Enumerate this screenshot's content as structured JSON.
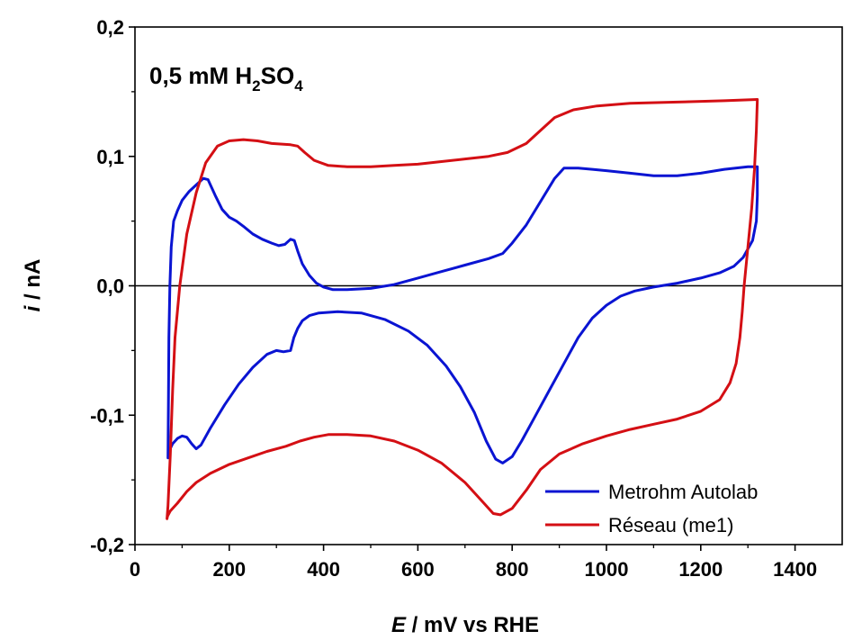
{
  "chart_data": {
    "type": "line",
    "annotation": {
      "main": "0,5 mM H",
      "sub1": "2",
      "mid": "SO",
      "sub2": "4"
    },
    "xlabel": {
      "italic": "E",
      "rest": " / mV vs RHE"
    },
    "ylabel": {
      "italic": "i",
      "rest": " / nA"
    },
    "xlim": [
      0,
      1500
    ],
    "ylim": [
      -0.2,
      0.2
    ],
    "xticks": [
      0,
      200,
      400,
      600,
      800,
      1000,
      1200,
      1400
    ],
    "xtick_labels": [
      "0",
      "200",
      "400",
      "600",
      "800",
      "1000",
      "1200",
      "1400"
    ],
    "yticks": [
      -0.2,
      -0.1,
      0.0,
      0.1,
      0.2
    ],
    "ytick_labels": [
      "-0,2",
      "-0,1",
      "0,0",
      "0,1",
      "0,2"
    ],
    "zero_line": true,
    "legend_position": "bottom-right",
    "series": [
      {
        "name": "Metrohm Autolab",
        "color": "#0a14d2",
        "points": [
          [
            70,
            -0.133
          ],
          [
            71,
            -0.09
          ],
          [
            72,
            -0.04
          ],
          [
            74,
            0.0
          ],
          [
            77,
            0.03
          ],
          [
            82,
            0.05
          ],
          [
            90,
            0.058
          ],
          [
            100,
            0.066
          ],
          [
            115,
            0.073
          ],
          [
            130,
            0.078
          ],
          [
            145,
            0.083
          ],
          [
            155,
            0.082
          ],
          [
            170,
            0.07
          ],
          [
            185,
            0.059
          ],
          [
            200,
            0.053
          ],
          [
            215,
            0.05
          ],
          [
            230,
            0.046
          ],
          [
            250,
            0.04
          ],
          [
            270,
            0.036
          ],
          [
            290,
            0.033
          ],
          [
            305,
            0.031
          ],
          [
            318,
            0.032
          ],
          [
            330,
            0.036
          ],
          [
            338,
            0.035
          ],
          [
            345,
            0.027
          ],
          [
            355,
            0.017
          ],
          [
            370,
            0.008
          ],
          [
            385,
            0.002
          ],
          [
            400,
            -0.001
          ],
          [
            420,
            -0.003
          ],
          [
            450,
            -0.003
          ],
          [
            500,
            -0.002
          ],
          [
            550,
            0.001
          ],
          [
            600,
            0.006
          ],
          [
            650,
            0.011
          ],
          [
            700,
            0.016
          ],
          [
            750,
            0.021
          ],
          [
            780,
            0.025
          ],
          [
            800,
            0.033
          ],
          [
            830,
            0.047
          ],
          [
            860,
            0.065
          ],
          [
            890,
            0.083
          ],
          [
            910,
            0.091
          ],
          [
            940,
            0.091
          ],
          [
            970,
            0.09
          ],
          [
            1000,
            0.089
          ],
          [
            1050,
            0.087
          ],
          [
            1100,
            0.085
          ],
          [
            1150,
            0.085
          ],
          [
            1200,
            0.087
          ],
          [
            1250,
            0.09
          ],
          [
            1300,
            0.092
          ],
          [
            1320,
            0.092
          ],
          [
            1320,
            0.07
          ],
          [
            1318,
            0.05
          ],
          [
            1310,
            0.035
          ],
          [
            1290,
            0.022
          ],
          [
            1270,
            0.015
          ],
          [
            1240,
            0.01
          ],
          [
            1200,
            0.006
          ],
          [
            1150,
            0.002
          ],
          [
            1100,
            -0.001
          ],
          [
            1060,
            -0.004
          ],
          [
            1030,
            -0.008
          ],
          [
            1000,
            -0.015
          ],
          [
            970,
            -0.025
          ],
          [
            940,
            -0.04
          ],
          [
            910,
            -0.06
          ],
          [
            880,
            -0.08
          ],
          [
            850,
            -0.1
          ],
          [
            820,
            -0.12
          ],
          [
            800,
            -0.132
          ],
          [
            780,
            -0.137
          ],
          [
            765,
            -0.134
          ],
          [
            745,
            -0.12
          ],
          [
            720,
            -0.098
          ],
          [
            690,
            -0.078
          ],
          [
            660,
            -0.062
          ],
          [
            620,
            -0.046
          ],
          [
            580,
            -0.035
          ],
          [
            530,
            -0.026
          ],
          [
            480,
            -0.021
          ],
          [
            430,
            -0.02
          ],
          [
            390,
            -0.021
          ],
          [
            370,
            -0.023
          ],
          [
            355,
            -0.027
          ],
          [
            345,
            -0.033
          ],
          [
            337,
            -0.04
          ],
          [
            330,
            -0.05
          ],
          [
            315,
            -0.051
          ],
          [
            300,
            -0.05
          ],
          [
            280,
            -0.053
          ],
          [
            250,
            -0.063
          ],
          [
            220,
            -0.076
          ],
          [
            190,
            -0.092
          ],
          [
            160,
            -0.11
          ],
          [
            140,
            -0.123
          ],
          [
            130,
            -0.126
          ],
          [
            120,
            -0.122
          ],
          [
            110,
            -0.117
          ],
          [
            100,
            -0.116
          ],
          [
            90,
            -0.118
          ],
          [
            80,
            -0.122
          ],
          [
            72,
            -0.128
          ]
        ]
      },
      {
        "name": "Réseau (me1)",
        "color": "#d40f14",
        "points": [
          [
            68,
            -0.18
          ],
          [
            70,
            -0.17
          ],
          [
            75,
            -0.13
          ],
          [
            80,
            -0.08
          ],
          [
            85,
            -0.04
          ],
          [
            95,
            0.0
          ],
          [
            110,
            0.04
          ],
          [
            130,
            0.072
          ],
          [
            150,
            0.095
          ],
          [
            175,
            0.108
          ],
          [
            200,
            0.112
          ],
          [
            230,
            0.113
          ],
          [
            260,
            0.112
          ],
          [
            290,
            0.11
          ],
          [
            330,
            0.109
          ],
          [
            345,
            0.108
          ],
          [
            360,
            0.103
          ],
          [
            380,
            0.097
          ],
          [
            410,
            0.093
          ],
          [
            450,
            0.092
          ],
          [
            500,
            0.092
          ],
          [
            550,
            0.093
          ],
          [
            600,
            0.094
          ],
          [
            650,
            0.096
          ],
          [
            700,
            0.098
          ],
          [
            750,
            0.1
          ],
          [
            790,
            0.103
          ],
          [
            830,
            0.11
          ],
          [
            860,
            0.12
          ],
          [
            890,
            0.13
          ],
          [
            930,
            0.136
          ],
          [
            980,
            0.139
          ],
          [
            1050,
            0.141
          ],
          [
            1150,
            0.142
          ],
          [
            1250,
            0.143
          ],
          [
            1320,
            0.144
          ],
          [
            1318,
            0.12
          ],
          [
            1314,
            0.09
          ],
          [
            1308,
            0.06
          ],
          [
            1300,
            0.03
          ],
          [
            1292,
            0.0
          ],
          [
            1288,
            -0.02
          ],
          [
            1283,
            -0.04
          ],
          [
            1275,
            -0.06
          ],
          [
            1262,
            -0.075
          ],
          [
            1240,
            -0.088
          ],
          [
            1200,
            -0.097
          ],
          [
            1150,
            -0.103
          ],
          [
            1100,
            -0.107
          ],
          [
            1050,
            -0.111
          ],
          [
            1000,
            -0.116
          ],
          [
            950,
            -0.122
          ],
          [
            900,
            -0.13
          ],
          [
            860,
            -0.142
          ],
          [
            830,
            -0.158
          ],
          [
            800,
            -0.172
          ],
          [
            775,
            -0.177
          ],
          [
            760,
            -0.176
          ],
          [
            740,
            -0.168
          ],
          [
            700,
            -0.152
          ],
          [
            650,
            -0.137
          ],
          [
            600,
            -0.127
          ],
          [
            550,
            -0.12
          ],
          [
            500,
            -0.116
          ],
          [
            450,
            -0.115
          ],
          [
            410,
            -0.115
          ],
          [
            380,
            -0.117
          ],
          [
            350,
            -0.12
          ],
          [
            320,
            -0.124
          ],
          [
            280,
            -0.128
          ],
          [
            240,
            -0.133
          ],
          [
            200,
            -0.138
          ],
          [
            160,
            -0.145
          ],
          [
            130,
            -0.152
          ],
          [
            110,
            -0.159
          ],
          [
            90,
            -0.168
          ],
          [
            75,
            -0.174
          ],
          [
            69,
            -0.178
          ]
        ]
      }
    ]
  }
}
